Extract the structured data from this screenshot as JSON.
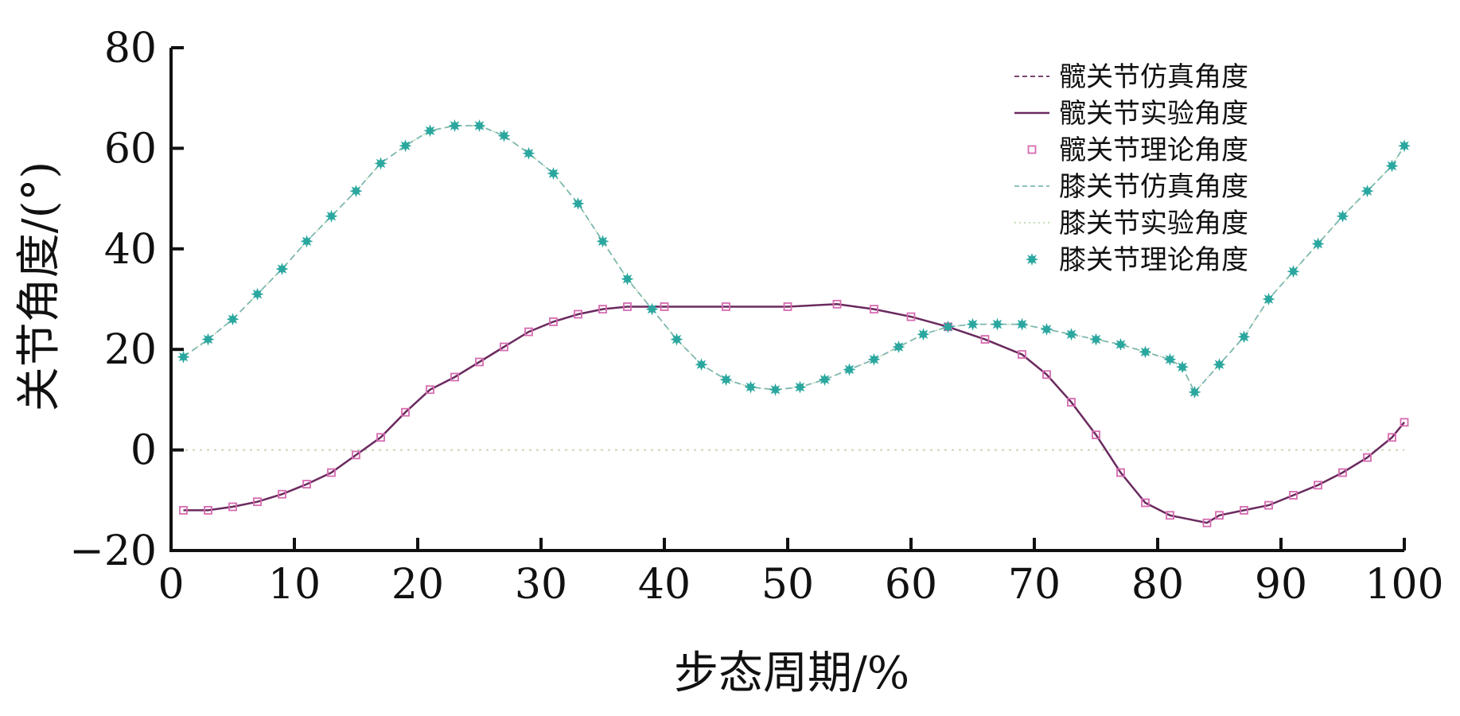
{
  "chart_data": {
    "type": "line",
    "title": "",
    "xlabel": "步态周期/%",
    "ylabel": "关节角度/(°)",
    "xlim": [
      0,
      100
    ],
    "ylim": [
      -20,
      80
    ],
    "xticks": [
      0,
      10,
      20,
      30,
      40,
      50,
      60,
      70,
      80,
      90,
      100
    ],
    "yticks": [
      -20,
      0,
      20,
      40,
      60,
      80
    ],
    "xtick_labels": [
      "0",
      "10",
      "20",
      "30",
      "40",
      "50",
      "60",
      "70",
      "80",
      "90",
      "100"
    ],
    "ytick_labels": [
      "−20",
      "0",
      "20",
      "40",
      "60",
      "80"
    ],
    "grid": false,
    "legend_position": "top-right",
    "series": [
      {
        "name": "髋关节仿真角度",
        "style": "dashed",
        "color": "#6a2a5e",
        "x": [
          1,
          3,
          5,
          7,
          9,
          11,
          13,
          15,
          17,
          19,
          21,
          23,
          25,
          27,
          29,
          31,
          33,
          35,
          37,
          40,
          45,
          50,
          54,
          57,
          60,
          63,
          66,
          69,
          71,
          73,
          75,
          77,
          79,
          81,
          84,
          85,
          87,
          89,
          91,
          93,
          95,
          97,
          99,
          100
        ],
        "y": [
          -12,
          -12,
          -11.3,
          -10.3,
          -8.8,
          -6.8,
          -4.5,
          -1,
          2.5,
          7.5,
          12,
          14.5,
          17.5,
          20.5,
          23.5,
          25.5,
          27,
          28,
          28.5,
          28.5,
          28.5,
          28.5,
          29,
          28,
          26.5,
          24.5,
          22,
          19,
          15,
          9.5,
          3,
          -4.5,
          -10.5,
          -13,
          -14.5,
          -13,
          -12,
          -11,
          -9,
          -7,
          -4.5,
          -1.5,
          2.5,
          5.5
        ]
      },
      {
        "name": "髋关节实验角度",
        "style": "solid",
        "color": "#6a2a5e",
        "x": [
          1,
          3,
          5,
          7,
          9,
          11,
          13,
          15,
          17,
          19,
          21,
          23,
          25,
          27,
          29,
          31,
          33,
          35,
          37,
          40,
          45,
          50,
          54,
          57,
          60,
          63,
          66,
          69,
          71,
          73,
          75,
          77,
          79,
          81,
          84,
          85,
          87,
          89,
          91,
          93,
          95,
          97,
          99,
          100
        ],
        "y": [
          -12,
          -12,
          -11.3,
          -10.3,
          -8.8,
          -6.8,
          -4.5,
          -1,
          2.5,
          7.5,
          12,
          14.5,
          17.5,
          20.5,
          23.5,
          25.5,
          27,
          28,
          28.5,
          28.5,
          28.5,
          28.5,
          29,
          28,
          26.5,
          24.5,
          22,
          19,
          15,
          9.5,
          3,
          -4.5,
          -10.5,
          -13,
          -14.5,
          -13,
          -12,
          -11,
          -9,
          -7,
          -4.5,
          -1.5,
          2.5,
          5.5
        ]
      },
      {
        "name": "髋关节理论角度",
        "style": "markers-square",
        "color": "#d66bb0",
        "x": [
          1,
          3,
          5,
          7,
          9,
          11,
          13,
          15,
          17,
          19,
          21,
          23,
          25,
          27,
          29,
          31,
          33,
          35,
          37,
          40,
          45,
          50,
          54,
          57,
          60,
          63,
          66,
          69,
          71,
          73,
          75,
          77,
          79,
          81,
          84,
          85,
          87,
          89,
          91,
          93,
          95,
          97,
          99,
          100
        ],
        "y": [
          -12,
          -12,
          -11.3,
          -10.3,
          -8.8,
          -6.8,
          -4.5,
          -1,
          2.5,
          7.5,
          12,
          14.5,
          17.5,
          20.5,
          23.5,
          25.5,
          27,
          28,
          28.5,
          28.5,
          28.5,
          28.5,
          29,
          28,
          26.5,
          24.5,
          22,
          19,
          15,
          9.5,
          3,
          -4.5,
          -10.5,
          -13,
          -14.5,
          -13,
          -12,
          -11,
          -9,
          -7,
          -4.5,
          -1.5,
          2.5,
          5.5
        ]
      },
      {
        "name": "膝关节仿真角度",
        "style": "dashed",
        "color": "#7fb8b0",
        "x": [
          1,
          3,
          5,
          7,
          9,
          11,
          13,
          15,
          17,
          19,
          21,
          23,
          25,
          27,
          29,
          31,
          33,
          35,
          37,
          39,
          41,
          43,
          45,
          47,
          49,
          51,
          53,
          55,
          57,
          59,
          61,
          63,
          65,
          67,
          69,
          71,
          73,
          75,
          77,
          79,
          81,
          82,
          83,
          85,
          87,
          89,
          91,
          93,
          95,
          97,
          99,
          100
        ],
        "y": [
          18.5,
          22,
          26,
          31,
          36,
          41.5,
          46.5,
          51.5,
          57,
          60.5,
          63.5,
          64.5,
          64.5,
          62.5,
          59,
          55,
          49,
          41.5,
          34,
          28,
          22,
          17,
          14,
          12.5,
          12,
          12.5,
          14,
          16,
          18,
          20.5,
          23,
          24.5,
          25,
          25,
          25,
          24,
          23,
          22,
          21,
          19.5,
          18,
          16.5,
          11.5,
          17,
          22.5,
          30,
          35.5,
          41,
          46.5,
          51.5,
          56.5,
          60.5
        ]
      },
      {
        "name": "膝关节实验角度",
        "style": "dotted",
        "color": "#bcd9b0",
        "x": [
          1,
          3,
          5,
          7,
          9,
          11,
          13,
          15,
          17,
          19,
          21,
          23,
          25,
          27,
          29,
          31,
          33,
          35,
          37,
          39,
          41,
          43,
          45,
          47,
          49,
          51,
          53,
          55,
          57,
          59,
          61,
          63,
          65,
          67,
          69,
          71,
          73,
          75,
          77,
          79,
          81,
          82,
          83,
          85,
          87,
          89,
          91,
          93,
          95,
          97,
          99,
          100
        ],
        "y": [
          18.5,
          22,
          26,
          31,
          36,
          41.5,
          46.5,
          51.5,
          57,
          60.5,
          63.5,
          64.5,
          64.5,
          62.5,
          59,
          55,
          49,
          41.5,
          34,
          28,
          22,
          17,
          14,
          12.5,
          12,
          12.5,
          14,
          16,
          18,
          20.5,
          23,
          24.5,
          25,
          25,
          25,
          24,
          23,
          22,
          21,
          19.5,
          18,
          16.5,
          11.5,
          17,
          22.5,
          30,
          35.5,
          41,
          46.5,
          51.5,
          56.5,
          60.5
        ]
      },
      {
        "name": "膝关节理论角度",
        "style": "markers-star",
        "color": "#2aa79f",
        "x": [
          1,
          3,
          5,
          7,
          9,
          11,
          13,
          15,
          17,
          19,
          21,
          23,
          25,
          27,
          29,
          31,
          33,
          35,
          37,
          39,
          41,
          43,
          45,
          47,
          49,
          51,
          53,
          55,
          57,
          59,
          61,
          63,
          65,
          67,
          69,
          71,
          73,
          75,
          77,
          79,
          81,
          82,
          83,
          85,
          87,
          89,
          91,
          93,
          95,
          97,
          99,
          100
        ],
        "y": [
          18.5,
          22,
          26,
          31,
          36,
          41.5,
          46.5,
          51.5,
          57,
          60.5,
          63.5,
          64.5,
          64.5,
          62.5,
          59,
          55,
          49,
          41.5,
          34,
          28,
          22,
          17,
          14,
          12.5,
          12,
          12.5,
          14,
          16,
          18,
          20.5,
          23,
          24.5,
          25,
          25,
          25,
          24,
          23,
          22,
          21,
          19.5,
          18,
          16.5,
          11.5,
          17,
          22.5,
          30,
          35.5,
          41,
          46.5,
          51.5,
          56.5,
          60.5
        ]
      }
    ],
    "baseline": {
      "y": 0,
      "style": "dotted",
      "color": "#c8d8b8"
    }
  }
}
